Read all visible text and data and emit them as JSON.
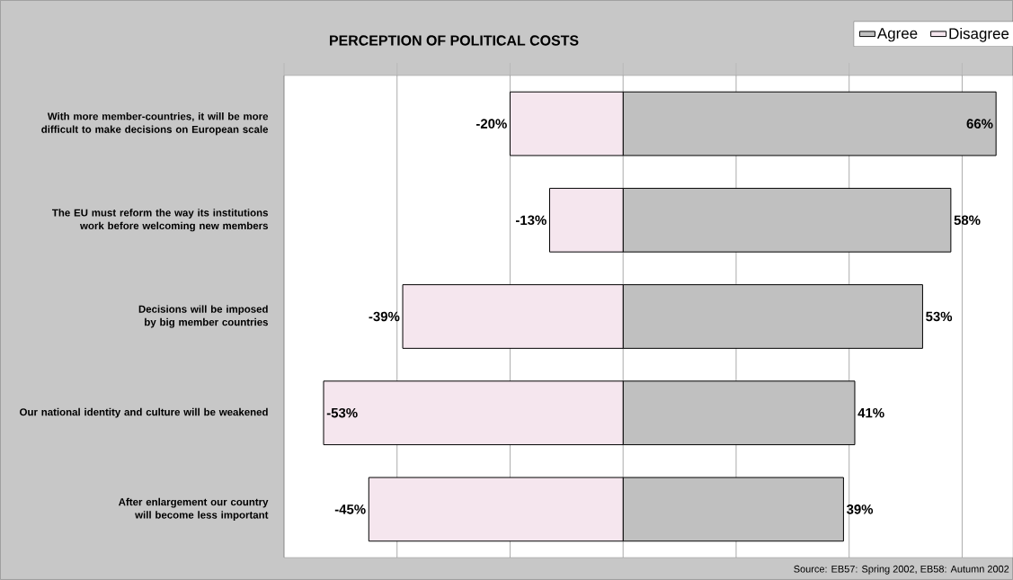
{
  "chart_data": {
    "type": "bar",
    "orientation": "horizontal",
    "stacked": true,
    "title": "PERCEPTION OF POLITICAL COSTS",
    "categories": [
      "With more member-countries, it will be more difficult to make decisions on European scale",
      "The EU must reform the way its institutions work before welcoming new members",
      "Decisions will be imposed by big member countries",
      "Our national identity and culture will be weakened",
      "After enlargement our country will become less important"
    ],
    "series": [
      {
        "name": "Agree",
        "color": "#c0c0c0",
        "values": [
          66,
          58,
          53,
          41,
          39
        ],
        "value_labels": [
          "66%",
          "58%",
          "53%",
          "41%",
          "39%"
        ]
      },
      {
        "name": "Disagree",
        "color": "#f5e6ee",
        "values": [
          -20,
          -13,
          -39,
          -53,
          -45
        ],
        "value_labels": [
          "-20%",
          "-13%",
          "-39%",
          "-53%",
          "-45%"
        ]
      }
    ],
    "xlim": [
      -60,
      69
    ],
    "xticks": [
      {
        "value": -60,
        "label": null
      },
      {
        "value": -40,
        "label": null
      },
      {
        "value": -20,
        "label": null
      },
      {
        "value": 0,
        "label": null
      },
      {
        "value": 20,
        "label": null
      },
      {
        "value": 40,
        "label": null
      },
      {
        "value": 60,
        "label": null
      }
    ],
    "grid": "x",
    "legend": "top right",
    "annotations": [
      "Source: EB57: Spring 2002,  EB58: Autumn 2002"
    ]
  }
}
